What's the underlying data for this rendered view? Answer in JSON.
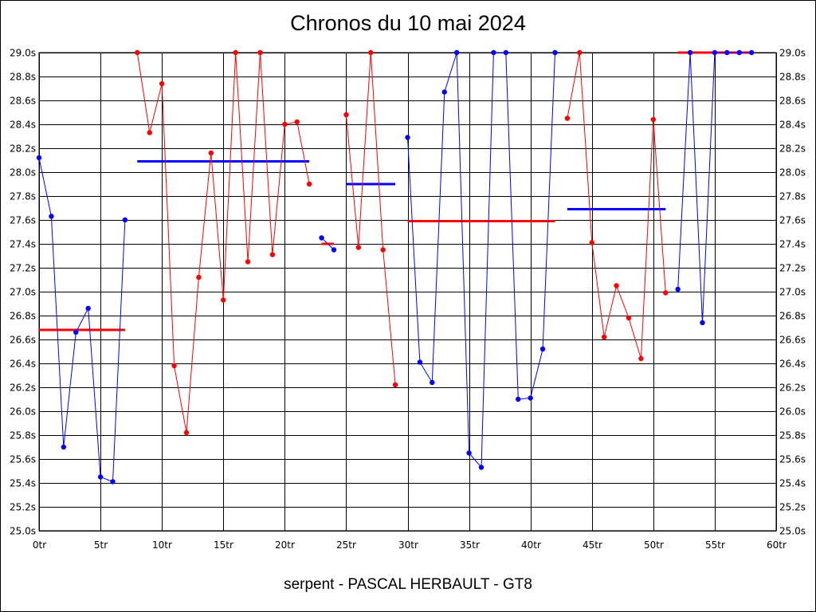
{
  "chart_data": {
    "type": "line",
    "title": "Chronos du 10 mai 2024",
    "subtitle": "serpent - PASCAL HERBAULT - GT8",
    "xlim": [
      0,
      60
    ],
    "ylim": [
      25.0,
      29.0
    ],
    "x_ticks": [
      0,
      5,
      10,
      15,
      20,
      25,
      30,
      35,
      40,
      45,
      50,
      55,
      60
    ],
    "x_tick_labels": [
      "0tr",
      "5tr",
      "10tr",
      "15tr",
      "20tr",
      "25tr",
      "30tr",
      "35tr",
      "40tr",
      "45tr",
      "50tr",
      "55tr",
      "60tr"
    ],
    "y_ticks": [
      25.0,
      25.2,
      25.4,
      25.6,
      25.8,
      26.0,
      26.2,
      26.4,
      26.6,
      26.8,
      27.0,
      27.2,
      27.4,
      27.6,
      27.8,
      28.0,
      28.2,
      28.4,
      28.6,
      28.8,
      29.0
    ],
    "y_tick_labels": [
      "25.0s",
      "25.2s",
      "25.4s",
      "25.6s",
      "25.8s",
      "26.0s",
      "26.2s",
      "26.4s",
      "26.6s",
      "26.8s",
      "27.0s",
      "27.2s",
      "27.4s",
      "27.6s",
      "27.8s",
      "28.0s",
      "28.2s",
      "28.4s",
      "28.6s",
      "28.8s",
      "29.0s"
    ],
    "grid": true,
    "colors": {
      "blue": "#0000ff",
      "red": "#ff0000",
      "grid": "#000000"
    },
    "series": [
      {
        "color": "#0000ff",
        "points": [
          [
            0,
            28.12
          ],
          [
            1,
            27.63
          ],
          [
            2,
            25.7
          ],
          [
            3,
            26.66
          ],
          [
            4,
            26.86
          ],
          [
            5,
            25.45
          ],
          [
            6,
            25.41
          ],
          [
            7,
            27.6
          ]
        ]
      },
      {
        "color": "#ff0000",
        "points": [
          [
            8,
            29.0
          ],
          [
            9,
            28.33
          ],
          [
            10,
            28.74
          ],
          [
            11,
            26.38
          ],
          [
            12,
            25.82
          ],
          [
            13,
            27.12
          ],
          [
            14,
            28.16
          ],
          [
            15,
            26.93
          ],
          [
            16,
            29.0
          ],
          [
            17,
            27.25
          ],
          [
            18,
            29.0
          ],
          [
            19,
            27.31
          ],
          [
            20,
            28.4
          ],
          [
            21,
            28.42
          ],
          [
            22,
            27.9
          ]
        ]
      },
      {
        "color": "#0000ff",
        "points": [
          [
            23,
            27.45
          ],
          [
            24,
            27.35
          ]
        ]
      },
      {
        "color": "#ff0000",
        "points": [
          [
            25,
            28.48
          ],
          [
            26,
            27.37
          ],
          [
            27,
            29.0
          ],
          [
            28,
            27.35
          ],
          [
            29,
            26.22
          ]
        ]
      },
      {
        "color": "#0000ff",
        "points": [
          [
            30,
            28.29
          ],
          [
            31,
            26.41
          ],
          [
            32,
            26.24
          ],
          [
            33,
            28.67
          ],
          [
            34,
            29.0
          ],
          [
            35,
            25.65
          ],
          [
            36,
            25.53
          ],
          [
            37,
            29.0
          ],
          [
            38,
            29.0
          ],
          [
            39,
            26.1
          ],
          [
            40,
            26.11
          ],
          [
            41,
            26.52
          ],
          [
            42,
            29.0
          ]
        ]
      },
      {
        "color": "#ff0000",
        "points": [
          [
            43,
            28.45
          ],
          [
            44,
            29.0
          ],
          [
            45,
            27.41
          ],
          [
            46,
            26.62
          ],
          [
            47,
            27.05
          ],
          [
            48,
            26.78
          ],
          [
            49,
            26.44
          ],
          [
            50,
            28.44
          ],
          [
            51,
            26.99
          ]
        ]
      },
      {
        "color": "#0000ff",
        "points": [
          [
            52,
            27.02
          ],
          [
            53,
            29.0
          ],
          [
            54,
            26.74
          ],
          [
            55,
            29.0
          ],
          [
            56,
            29.0
          ],
          [
            57,
            29.0
          ],
          [
            58,
            29.0
          ]
        ]
      }
    ],
    "averages": [
      {
        "color": "#ff0000",
        "from": 0,
        "to": 7,
        "value": 26.68
      },
      {
        "color": "#0000ff",
        "from": 8,
        "to": 22,
        "value": 28.09
      },
      {
        "color": "#ff0000",
        "from": 23,
        "to": 24,
        "value": 27.4
      },
      {
        "color": "#0000ff",
        "from": 25,
        "to": 29,
        "value": 27.9
      },
      {
        "color": "#ff0000",
        "from": 30,
        "to": 42,
        "value": 27.59
      },
      {
        "color": "#0000ff",
        "from": 43,
        "to": 51,
        "value": 27.69
      },
      {
        "color": "#ff0000",
        "from": 52,
        "to": 58,
        "value": 29.0
      }
    ]
  }
}
